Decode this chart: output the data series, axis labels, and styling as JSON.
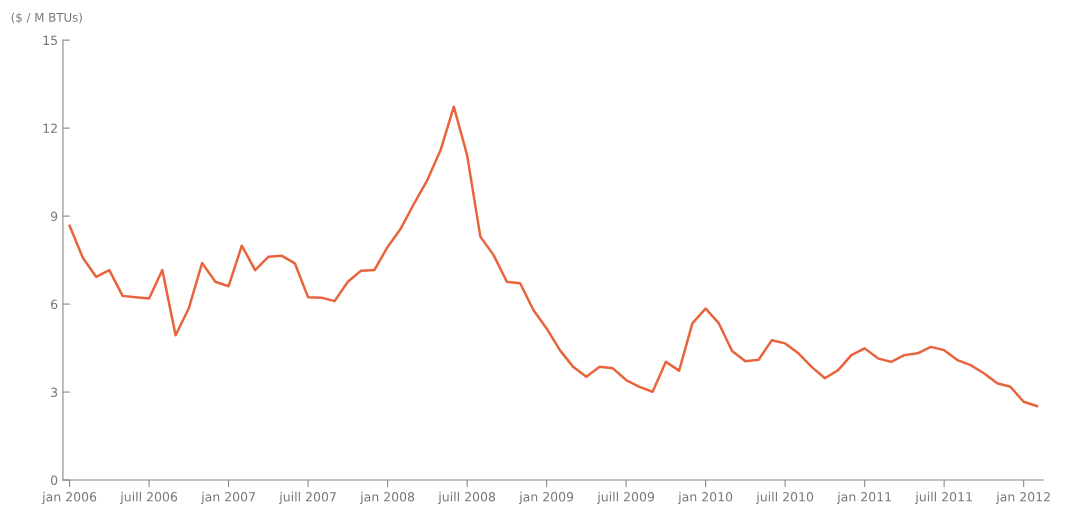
{
  "chart_data": {
    "type": "line",
    "ylabel": "($ / M BTUs)",
    "categories": [
      "jan 2006",
      null,
      null,
      null,
      null,
      null,
      "juill 2006",
      null,
      null,
      null,
      null,
      null,
      "jan 2007",
      null,
      null,
      null,
      null,
      null,
      "juill 2007",
      null,
      null,
      null,
      null,
      null,
      "jan 2008",
      null,
      null,
      null,
      null,
      null,
      "juill 2008",
      null,
      null,
      null,
      null,
      null,
      "jan 2009",
      null,
      null,
      null,
      null,
      null,
      "juill 2009",
      null,
      null,
      null,
      null,
      null,
      "jan 2010",
      null,
      null,
      null,
      null,
      null,
      "juill 2010",
      null,
      null,
      null,
      null,
      null,
      "jan 2011",
      null,
      null,
      null,
      null,
      null,
      "juill 2011",
      null,
      null,
      null,
      null,
      null,
      "jan 2012",
      null
    ],
    "series": [
      {
        "color": "#e8643c",
        "values": [
          8.67,
          7.58,
          6.93,
          7.16,
          6.28,
          6.23,
          6.19,
          7.16,
          4.94,
          5.86,
          7.4,
          6.76,
          6.61,
          7.99,
          7.16,
          7.61,
          7.65,
          7.39,
          6.23,
          6.22,
          6.1,
          6.76,
          7.14,
          7.16,
          7.95,
          8.58,
          9.43,
          10.23,
          11.25,
          12.73,
          11.08,
          8.3,
          7.67,
          6.76,
          6.71,
          5.8,
          5.17,
          4.43,
          3.86,
          3.52,
          3.86,
          3.81,
          3.41,
          3.18,
          3.01,
          4.03,
          3.73,
          5.34,
          5.85,
          5.34,
          4.4,
          4.05,
          4.1,
          4.77,
          4.66,
          4.32,
          3.86,
          3.47,
          3.75,
          4.26,
          4.49,
          4.15,
          4.03,
          4.26,
          4.32,
          4.54,
          4.43,
          4.09,
          3.92,
          3.64,
          3.3,
          3.18,
          2.67,
          2.52
        ]
      }
    ],
    "ylim": [
      0,
      15
    ],
    "yticks": [
      0,
      3,
      6,
      9,
      12,
      15
    ],
    "grid": false,
    "legend": false,
    "marker": "none",
    "line_style": "solid"
  }
}
